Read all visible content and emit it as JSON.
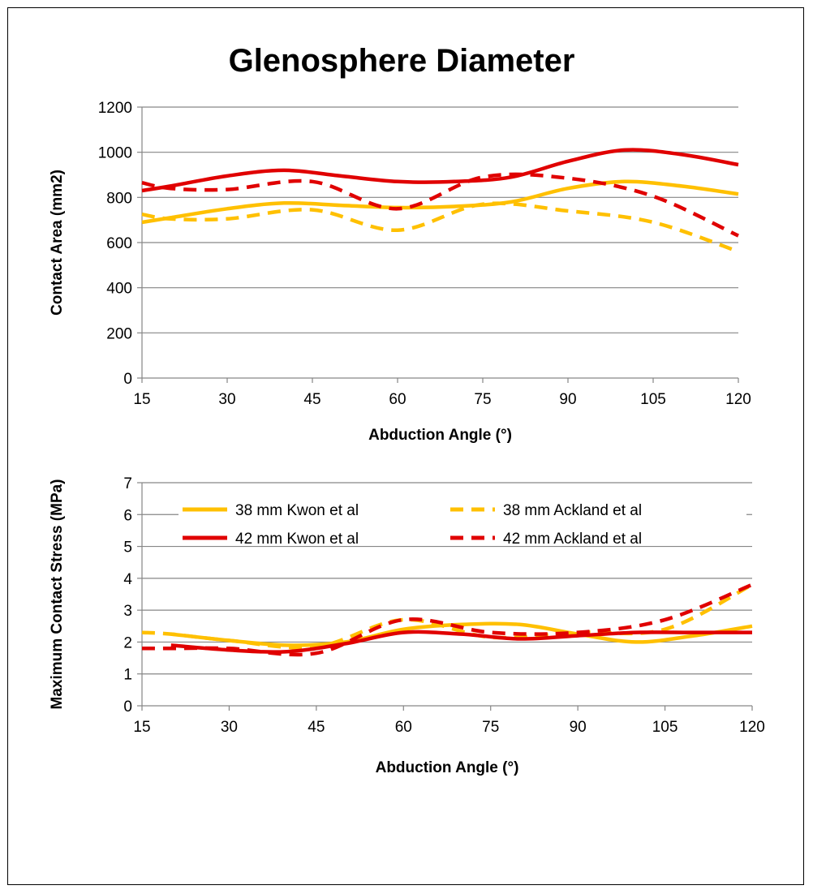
{
  "colors": {
    "38mm": "#FFC000",
    "42mm": "#E00000",
    "grid": "#868686",
    "axis": "#868686"
  },
  "chart_data": [
    {
      "type": "line",
      "title": "Glenosphere Diameter",
      "xlabel": "Abduction Angle (°)",
      "ylabel": "Contact Area (mm2)",
      "xlim": [
        15,
        120
      ],
      "ylim": [
        0,
        1200
      ],
      "xticks": [
        "15",
        "30",
        "45",
        "60",
        "75",
        "90",
        "105",
        "120"
      ],
      "yticks": [
        "0",
        "200",
        "400",
        "600",
        "800",
        "1000",
        "1200"
      ],
      "grid": true,
      "series": [
        {
          "name": "38 mm Kwon et al",
          "style": "solid",
          "color": "#FFC000",
          "x": [
            15,
            20,
            30,
            40,
            50,
            60,
            70,
            80,
            90,
            100,
            110,
            120
          ],
          "y": [
            690,
            710,
            750,
            775,
            765,
            755,
            760,
            780,
            840,
            870,
            850,
            815
          ]
        },
        {
          "name": "38 mm Ackland et al",
          "style": "dashed",
          "color": "#FFC000",
          "x": [
            15,
            20,
            30,
            45,
            60,
            75,
            90,
            105,
            120
          ],
          "y": [
            725,
            705,
            705,
            745,
            655,
            770,
            740,
            690,
            560
          ]
        },
        {
          "name": "42 mm Kwon et al",
          "style": "solid",
          "color": "#E00000",
          "x": [
            15,
            20,
            30,
            40,
            50,
            60,
            70,
            80,
            90,
            100,
            110,
            120
          ],
          "y": [
            830,
            850,
            895,
            920,
            895,
            870,
            870,
            890,
            960,
            1010,
            990,
            945
          ]
        },
        {
          "name": "42 mm Ackland et al",
          "style": "dashed",
          "color": "#E00000",
          "x": [
            15,
            20,
            30,
            45,
            60,
            75,
            90,
            105,
            120
          ],
          "y": [
            865,
            840,
            835,
            870,
            750,
            890,
            885,
            805,
            630
          ]
        }
      ]
    },
    {
      "type": "line",
      "title": "",
      "xlabel": "Abduction Angle (°)",
      "ylabel": "Maximum Contact  Stress (MPa)",
      "xlim": [
        15,
        120
      ],
      "ylim": [
        0,
        7
      ],
      "xticks": [
        "15",
        "30",
        "45",
        "60",
        "75",
        "90",
        "105",
        "120"
      ],
      "yticks": [
        "0",
        "1",
        "2",
        "3",
        "4",
        "5",
        "6",
        "7"
      ],
      "grid": true,
      "legend": "inside-top",
      "series": [
        {
          "name": "38 mm Kwon et al",
          "style": "solid",
          "color": "#FFC000",
          "x": [
            20,
            30,
            40,
            50,
            60,
            70,
            80,
            90,
            100,
            110,
            120
          ],
          "y": [
            2.25,
            2.05,
            1.9,
            2.0,
            2.4,
            2.55,
            2.55,
            2.25,
            2.0,
            2.2,
            2.5
          ]
        },
        {
          "name": "38 mm Ackland et al",
          "style": "dashed",
          "color": "#FFC000",
          "x": [
            15,
            20,
            30,
            45,
            60,
            75,
            90,
            105,
            120
          ],
          "y": [
            2.3,
            2.25,
            2.05,
            1.85,
            2.7,
            2.15,
            2.3,
            2.4,
            3.8
          ]
        },
        {
          "name": "42 mm Kwon et al",
          "style": "solid",
          "color": "#E00000",
          "x": [
            20,
            30,
            40,
            50,
            60,
            70,
            80,
            90,
            100,
            110,
            120
          ],
          "y": [
            1.9,
            1.75,
            1.7,
            1.95,
            2.3,
            2.25,
            2.1,
            2.2,
            2.3,
            2.3,
            2.3
          ]
        },
        {
          "name": "42 mm Ackland et al",
          "style": "dashed",
          "color": "#E00000",
          "x": [
            15,
            20,
            30,
            45,
            60,
            75,
            90,
            105,
            120
          ],
          "y": [
            1.8,
            1.8,
            1.8,
            1.65,
            2.7,
            2.3,
            2.3,
            2.7,
            3.8
          ]
        }
      ]
    }
  ]
}
